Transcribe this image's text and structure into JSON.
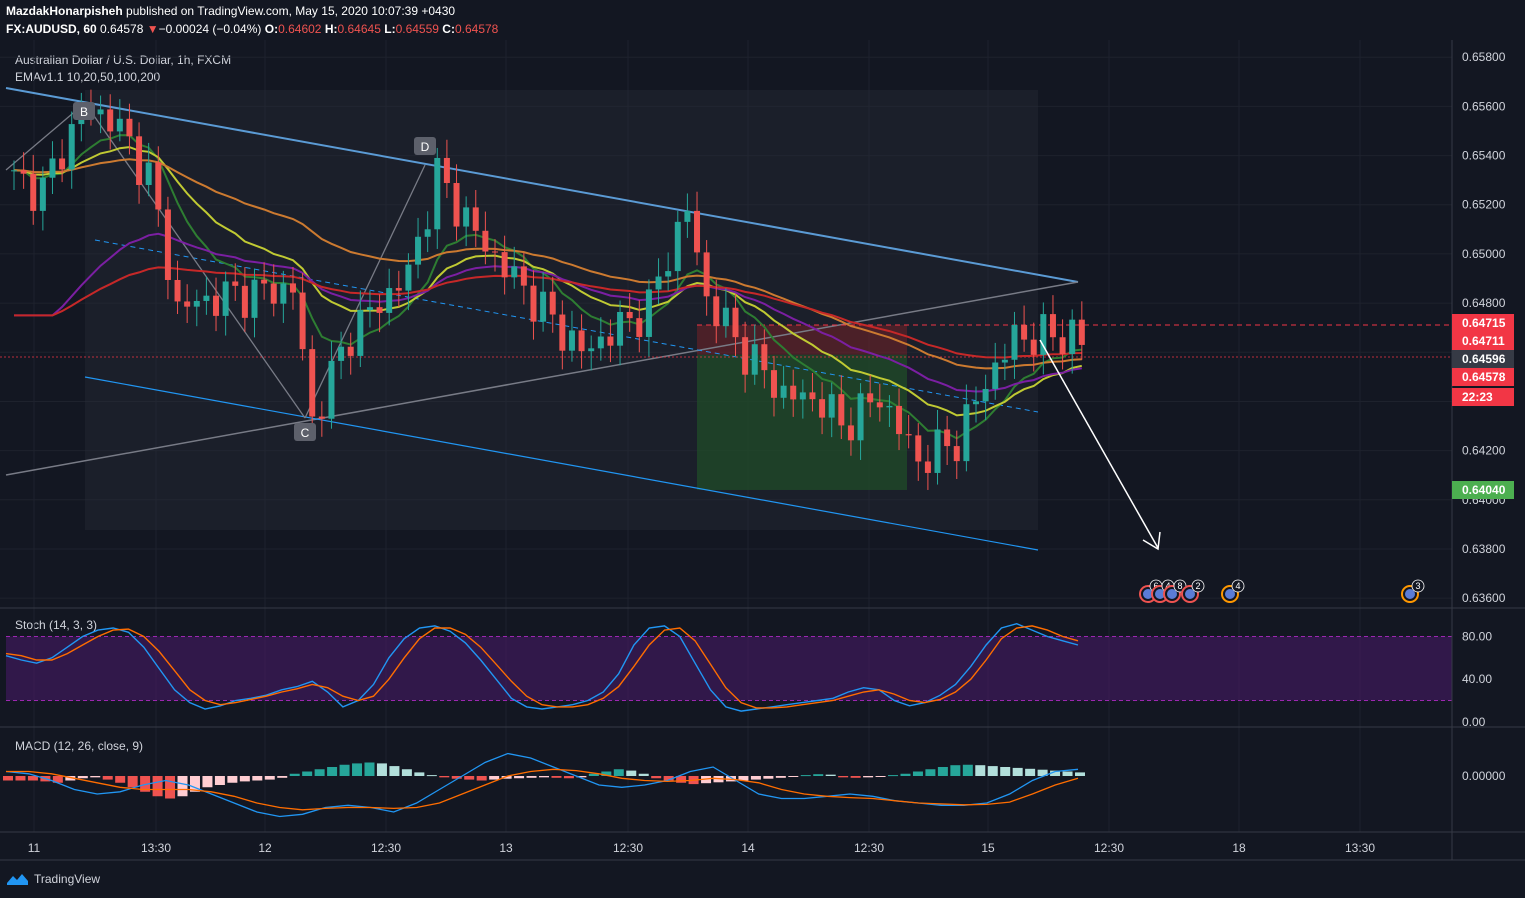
{
  "header": {
    "author": "MazdakHonarpisheh",
    "published": "published on TradingView.com, May 15, 2020 10:07:39 +0430",
    "symbol": "FX:AUDUSD, 60",
    "last": "0.64578",
    "change": "−0.00024 (−0.04%)",
    "o_label": "O:",
    "o": "0.64602",
    "h_label": "H:",
    "h": "0.64645",
    "l_label": "L:",
    "l": "0.64559",
    "c_label": "C:",
    "c": "0.64578"
  },
  "legend": {
    "title": "Australian Dollar / U.S. Dollar, 1h, FXCM",
    "ema": "EMAv1.1 10,20,50,100,200",
    "stoch": "Stoch (14, 3, 3)",
    "macd": "MACD (12, 26, close, 9)"
  },
  "brand": "TradingView",
  "colors": {
    "bg": "#131722",
    "up": "#26a69a",
    "down": "#ef5350",
    "stoch_band": "#7b1fa2",
    "long_tp": "#1b5e20",
    "long_sl": "#b71c1c"
  },
  "chart_data": {
    "type": "candlestick",
    "timeframe": "1h",
    "price_axis": {
      "ylim": [
        0.6356,
        0.6587
      ],
      "ticks": [
        "0.65800",
        "0.65600",
        "0.65400",
        "0.65200",
        "0.65000",
        "0.64800",
        "0.64600",
        "0.64400",
        "0.64200",
        "0.64000",
        "0.63800",
        "0.63600"
      ]
    },
    "time_axis": [
      "11",
      "13:30",
      "12",
      "12:30",
      "13",
      "12:30",
      "14",
      "12:30",
      "15",
      "12:30",
      "18",
      "13:30"
    ],
    "price_labels": [
      {
        "text": "0.64715",
        "color": "#f23645"
      },
      {
        "text": "0.64711",
        "color": "#f23645"
      },
      {
        "text": "0.64596",
        "color": "#363a45"
      },
      {
        "text": "0.64578",
        "color": "#f23645"
      },
      {
        "text": "22:23",
        "color": "#f23645"
      },
      {
        "text": "0.64040",
        "color": "#4caf50"
      }
    ],
    "pattern_points": [
      "B",
      "C",
      "D"
    ],
    "event_markers": [
      "6",
      "4",
      "8",
      "2",
      "4",
      "3"
    ],
    "stoch": {
      "name": "Stoch (14, 3, 3)",
      "ylim": [
        0,
        100
      ],
      "ticks": [
        "80.00",
        "40.00",
        "0.00"
      ],
      "band": [
        20,
        80
      ],
      "k": [
        62,
        58,
        55,
        60,
        70,
        80,
        86,
        88,
        84,
        70,
        50,
        30,
        18,
        12,
        15,
        20,
        22,
        25,
        30,
        33,
        38,
        28,
        14,
        20,
        35,
        60,
        78,
        88,
        90,
        85,
        74,
        58,
        40,
        22,
        14,
        12,
        14,
        16,
        20,
        28,
        45,
        72,
        88,
        90,
        80,
        55,
        30,
        14,
        10,
        12,
        14,
        16,
        18,
        20,
        22,
        28,
        32,
        30,
        20,
        15,
        18,
        25,
        35,
        52,
        72,
        88,
        92,
        86,
        80,
        76,
        72
      ],
      "d": [
        64,
        62,
        58,
        58,
        64,
        72,
        80,
        86,
        87,
        80,
        66,
        48,
        30,
        20,
        16,
        18,
        21,
        24,
        28,
        31,
        35,
        32,
        24,
        20,
        24,
        40,
        60,
        78,
        88,
        88,
        82,
        70,
        54,
        38,
        24,
        16,
        14,
        14,
        16,
        22,
        33,
        52,
        72,
        86,
        88,
        76,
        54,
        32,
        18,
        13,
        13,
        14,
        16,
        18,
        20,
        24,
        28,
        30,
        26,
        20,
        18,
        21,
        28,
        40,
        58,
        78,
        88,
        90,
        86,
        80,
        76
      ]
    },
    "macd": {
      "name": "MACD (12, 26, close, 9)",
      "ylim": [
        -0.0012,
        0.0008
      ],
      "ticks": [
        "0.00000"
      ],
      "hist": [
        -0.0001,
        -0.0001,
        -0.0001,
        -0.00012,
        -0.00015,
        -0.0001,
        -5e-05,
        -3e-05,
        -8e-05,
        -0.00015,
        -0.00025,
        -0.00035,
        -0.00045,
        -0.0005,
        -0.00045,
        -0.00035,
        -0.00025,
        -0.0002,
        -0.00015,
        -0.00012,
        -0.0001,
        -8e-05,
        -4e-05,
        5e-05,
        0.0001,
        0.00015,
        0.0002,
        0.00025,
        0.00028,
        0.0003,
        0.00028,
        0.00022,
        0.00015,
        8e-05,
        2e-05,
        -3e-05,
        -6e-05,
        -8e-05,
        -0.0001,
        -8e-05,
        -6e-05,
        -5e-05,
        -4e-05,
        -3e-05,
        -4e-05,
        -5e-05,
        -3e-05,
        5e-05,
        0.0001,
        0.00015,
        0.00012,
        5e-05,
        -5e-05,
        -0.0001,
        -0.00015,
        -0.00018,
        -0.00016,
        -0.00014,
        -0.00012,
        -0.0001,
        -8e-05,
        -6e-05,
        -4e-05,
        -2e-05,
        2e-05,
        4e-05,
        3e-05,
        -3e-05,
        -4e-05,
        -3e-05,
        -2e-05,
        2e-05,
        5e-05,
        0.0001,
        0.00015,
        0.0002,
        0.00024,
        0.00025,
        0.00024,
        0.00022,
        0.0002,
        0.00018,
        0.00016,
        0.00014,
        0.00012,
        0.0001,
        8e-05
      ],
      "macd": [
        0.0001,
        5e-05,
        -0.0001,
        -0.0003,
        -0.0004,
        -0.00035,
        -0.0002,
        -0.0001,
        -0.0002,
        -0.0004,
        -0.0006,
        -0.0008,
        -0.0009,
        -0.00085,
        -0.0007,
        -0.00065,
        -0.0007,
        -0.0008,
        -0.0006,
        -0.0003,
        0.0,
        0.0003,
        0.0005,
        0.0004,
        0.0002,
        0.0,
        -0.0002,
        -0.00025,
        -0.0002,
        -0.0001,
        0.0001,
        0.0002,
        -0.0001,
        -0.0004,
        -0.0005,
        -0.0005,
        -0.00045,
        -0.0004,
        -0.00045,
        -0.00055,
        -0.0006,
        -0.00065,
        -0.00065,
        -0.0006,
        -0.0004,
        -0.0001,
        0.0001,
        0.00015
      ],
      "signal": [
        0.0001,
        0.0001,
        5e-05,
        -5e-05,
        -0.00015,
        -0.00025,
        -0.0003,
        -0.0003,
        -0.0003,
        -0.00035,
        -0.00045,
        -0.0006,
        -0.0007,
        -0.00075,
        -0.00072,
        -0.0007,
        -0.0007,
        -0.00072,
        -0.0007,
        -0.0006,
        -0.0004,
        -0.0002,
        0.0,
        0.0001,
        0.00015,
        0.00012,
        5e-05,
        -5e-05,
        -0.0001,
        -0.00012,
        -0.0001,
        -5e-05,
        -8e-05,
        -0.00015,
        -0.0003,
        -0.0004,
        -0.00045,
        -0.00048,
        -0.0005,
        -0.00055,
        -0.0006,
        -0.00062,
        -0.00064,
        -0.00063,
        -0.00058,
        -0.0004,
        -0.0002,
        -5e-05
      ]
    }
  }
}
